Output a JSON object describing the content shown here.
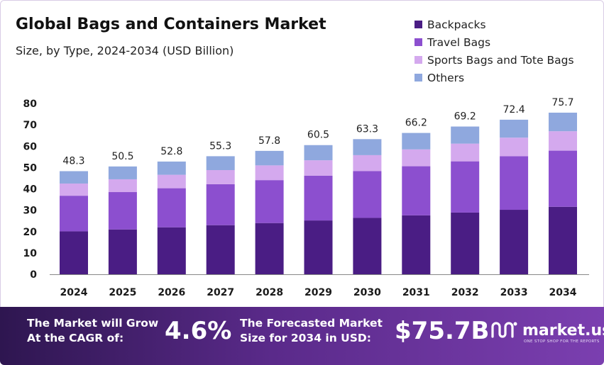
{
  "chart_data": {
    "type": "bar",
    "stacked": true,
    "title": "Global Bags and Containers Market",
    "subtitle": "Size, by Type, 2024-2034 (USD Billion)",
    "categories": [
      "2024",
      "2025",
      "2026",
      "2027",
      "2028",
      "2029",
      "2030",
      "2031",
      "2032",
      "2033",
      "2034"
    ],
    "series": [
      {
        "name": "Backpacks",
        "color": "#4a1d84",
        "values": [
          20.1,
          21.0,
          22.0,
          23.0,
          24.0,
          25.2,
          26.4,
          27.6,
          28.9,
          30.2,
          31.6
        ]
      },
      {
        "name": "Travel Bags",
        "color": "#8c4fcf",
        "values": [
          16.7,
          17.5,
          18.3,
          19.2,
          20.1,
          21.0,
          21.9,
          23.0,
          24.0,
          25.1,
          26.3
        ]
      },
      {
        "name": "Sports Bags and Tote Bags",
        "color": "#d4a9ee",
        "values": [
          5.7,
          6.0,
          6.3,
          6.6,
          6.9,
          7.2,
          7.5,
          7.9,
          8.3,
          8.7,
          9.1
        ]
      },
      {
        "name": "Others",
        "color": "#8fa8de",
        "values": [
          5.8,
          6.0,
          6.2,
          6.5,
          6.8,
          7.1,
          7.5,
          7.7,
          8.0,
          8.4,
          8.7
        ]
      }
    ],
    "totals": [
      "48.3",
      "50.5",
      "52.8",
      "55.3",
      "57.8",
      "60.5",
      "63.3",
      "66.2",
      "69.2",
      "72.4",
      "75.7"
    ],
    "yticks": [
      "0",
      "10",
      "20",
      "30",
      "40",
      "50",
      "60",
      "70",
      "80"
    ],
    "ylim": [
      0,
      80
    ],
    "legend": "top-right"
  },
  "footer": {
    "cagr_line1": "The Market will Grow",
    "cagr_line2": "At the CAGR of:",
    "cagr_value": "4.6%",
    "forecast_line1": "The Forecasted Market",
    "forecast_line2": "Size for 2034 in USD:",
    "forecast_value": "$75.7B",
    "logo_name": "market.us",
    "logo_tagline": "ONE STOP SHOP FOR THE REPORTS"
  },
  "colors": {
    "footer_start": "#2e1650",
    "footer_end": "#7b3fb0",
    "axis": "#888888"
  }
}
